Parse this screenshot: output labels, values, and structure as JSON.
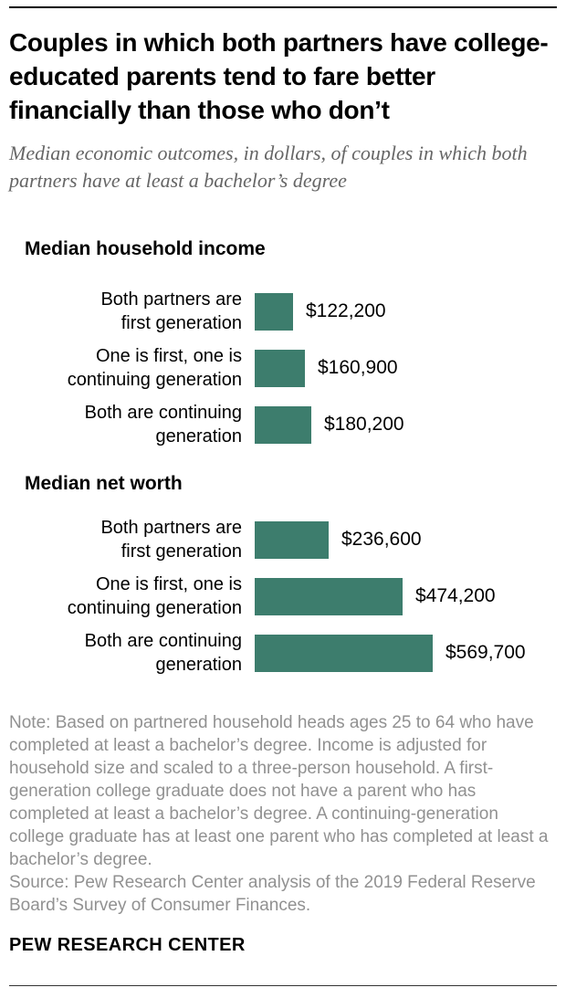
{
  "header": {
    "title": "Couples in which both partners have college-educated parents tend to fare better financially than those who don’t",
    "subtitle": "Median economic outcomes, in dollars, of couples in which both partners have at least a bachelor’s degree"
  },
  "colors": {
    "bar": "#3d7d6d",
    "title_text": "#000000",
    "subtitle_text": "#666666",
    "note_text": "#919191"
  },
  "chart_data": [
    {
      "type": "bar",
      "orientation": "horizontal",
      "title": "Median household income",
      "categories": [
        "Both partners are\nfirst generation",
        "One is first, one is\ncontinuing generation",
        "Both are continuing\ngeneration"
      ],
      "values": [
        122200,
        160900,
        180200
      ],
      "value_labels": [
        "$122,200",
        "$160,900",
        "$180,200"
      ],
      "value_format": "USD",
      "grid": false,
      "legend": false
    },
    {
      "type": "bar",
      "orientation": "horizontal",
      "title": "Median net worth",
      "categories": [
        "Both partners are\nfirst generation",
        "One is first, one is\ncontinuing generation",
        "Both are continuing\ngeneration"
      ],
      "values": [
        236600,
        474200,
        569700
      ],
      "value_labels": [
        "$236,600",
        "$474,200",
        "$569,700"
      ],
      "value_format": "USD",
      "grid": false,
      "legend": false
    }
  ],
  "footer": {
    "note": "Note: Based on partnered household heads ages 25 to 64 who have completed at least a bachelor’s degree. Income is adjusted for household size and scaled to a three-person household. A first-generation college graduate does not have a parent who has completed at least a bachelor’s degree. A continuing-generation college graduate has at least one parent who has completed at least a bachelor’s degree.",
    "source": "Source: Pew Research Center analysis of the 2019 Federal Reserve Board’s Survey of Consumer Finances.",
    "brand": "PEW RESEARCH CENTER"
  }
}
